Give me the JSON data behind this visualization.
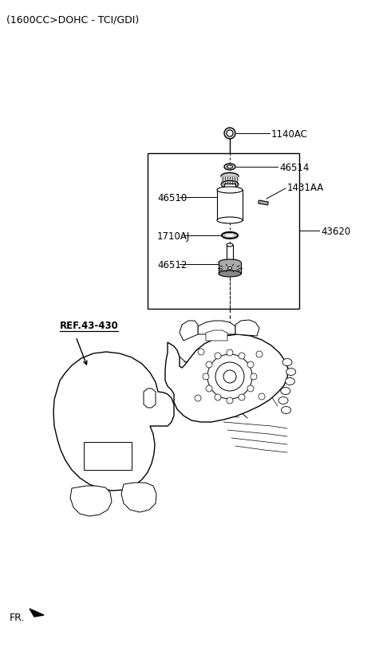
{
  "title": "(1600CC>DOHC - TCI/GDI)",
  "background_color": "#ffffff",
  "parts": [
    {
      "id": "1140AC",
      "label": "1140AC"
    },
    {
      "id": "46514",
      "label": "46514"
    },
    {
      "id": "1431AA",
      "label": "1431AA"
    },
    {
      "id": "46510",
      "label": "46510"
    },
    {
      "id": "1710AJ",
      "label": "1710AJ"
    },
    {
      "id": "46512",
      "label": "46512"
    },
    {
      "id": "43620",
      "label": "43620"
    },
    {
      "id": "REF.43-430",
      "label": "REF.43-430"
    }
  ],
  "fr_label": "FR.",
  "line_color": "#000000",
  "text_color": "#000000",
  "fig_width": 4.8,
  "fig_height": 8.12,
  "dpi": 100
}
